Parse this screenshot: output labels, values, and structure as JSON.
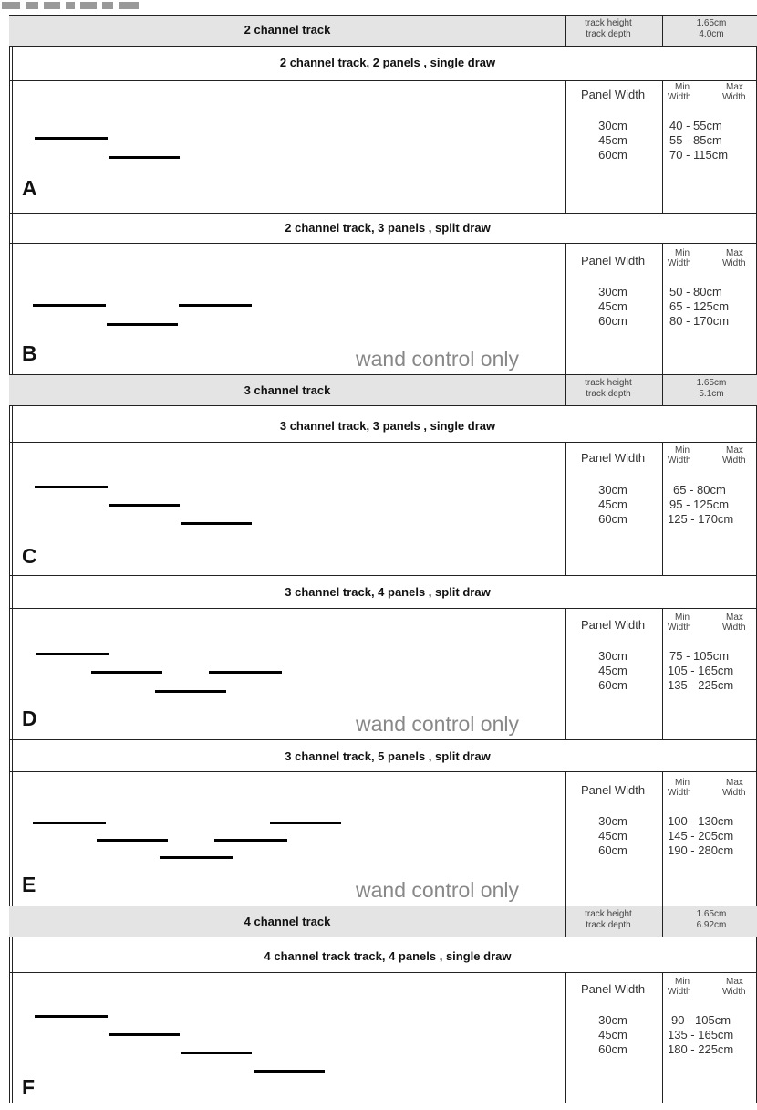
{
  "tracks": [
    {
      "title": "2 channel track",
      "height_label": "track height",
      "height_value": "1.65cm",
      "depth_label": "track depth",
      "depth_value": "4.0cm"
    },
    {
      "title": "3 channel track",
      "height_label": "track height",
      "height_value": "1.65cm",
      "depth_label": "track depth",
      "depth_value": "5.1cm"
    },
    {
      "title": "4 channel track",
      "height_label": "track height",
      "height_value": "1.65cm",
      "depth_label": "track depth",
      "depth_value": "6.92cm"
    }
  ],
  "headers": {
    "panel_width": "Panel Width",
    "min": "Min",
    "max": "Max",
    "width": "Width"
  },
  "panel_widths": [
    "30cm",
    "45cm",
    "60cm"
  ],
  "configs": [
    {
      "id": "A",
      "title": "2 channel track, 2 panels , single draw",
      "ranges": [
        "40  -  55cm",
        "55  -  85cm",
        "70  - 115cm"
      ],
      "note": ""
    },
    {
      "id": "B",
      "title": "2 channel track, 3 panels , split draw",
      "ranges": [
        "50  -  80cm",
        "65 - 125cm",
        "80 - 170cm"
      ],
      "note": "wand control only"
    },
    {
      "id": "C",
      "title": "3 channel track, 3 panels , single draw",
      "ranges": [
        "65 - 80cm",
        "95 - 125cm",
        "125 - 170cm"
      ],
      "note": ""
    },
    {
      "id": "D",
      "title": "3 channel track, 4 panels , split draw",
      "ranges": [
        "75 - 105cm",
        "105 - 165cm",
        "135 - 225cm"
      ],
      "note": "wand control only"
    },
    {
      "id": "E",
      "title": "3 channel track, 5 panels , split draw",
      "ranges": [
        "100 - 130cm",
        "145 - 205cm",
        "190 - 280cm"
      ],
      "note": "wand control only"
    },
    {
      "id": "F",
      "title": "4 channel track track, 4 panels , single draw",
      "ranges": [
        "90 - 105cm",
        "135 - 165cm",
        "180 - 225cm"
      ],
      "note": ""
    }
  ]
}
